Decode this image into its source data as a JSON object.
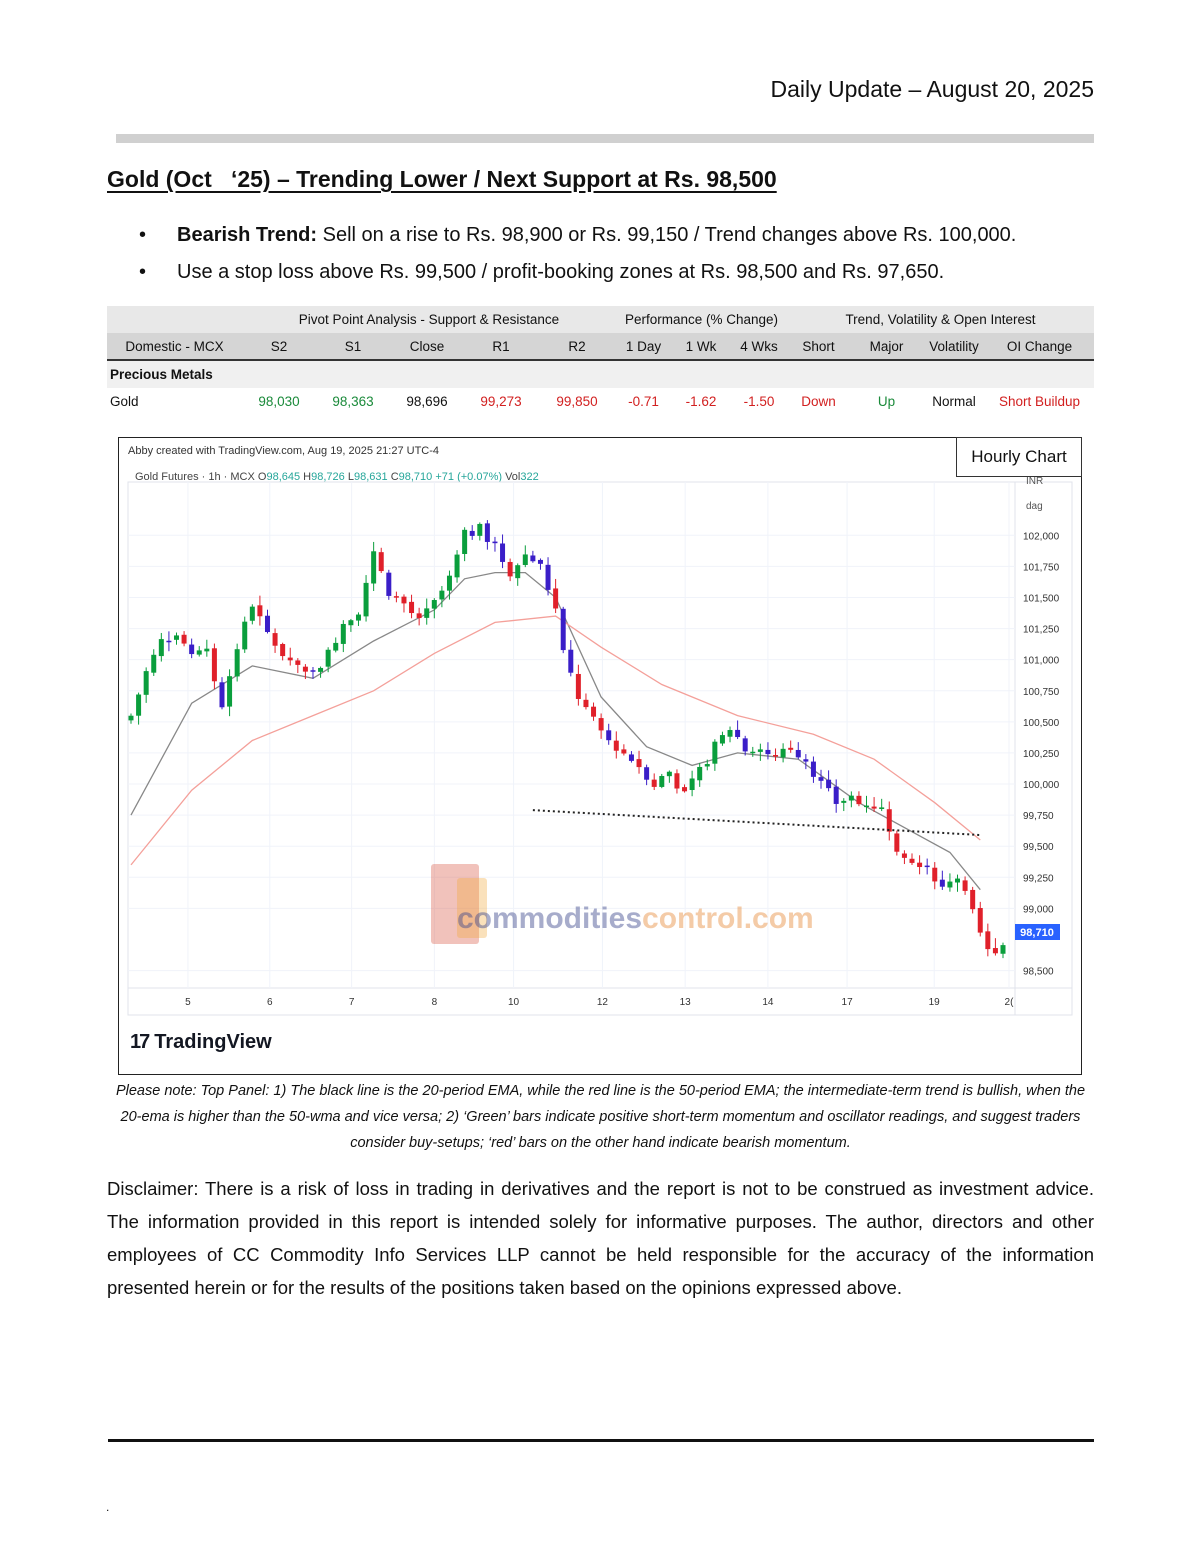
{
  "header": {
    "date": "Daily Update – August 20, 2025"
  },
  "title": "Gold (Oct   ‘25) – Trending Lower / Next Support at Rs. 98,500",
  "bullets": [
    {
      "bold": "Bearish Trend:",
      "text": " Sell on a rise to Rs. 98,900 or Rs. 99,150 / Trend changes above Rs. 100,000."
    },
    {
      "bold": "",
      "text": "Use a stop loss above Rs. 99,500 / profit-booking zones at Rs. 98,500 and Rs. 97,650."
    }
  ],
  "table": {
    "groups": {
      "pivot": "Pivot Point Analysis - Support & Resistance",
      "performance": "Performance (% Change)",
      "trend": "Trend, Volatility & Open Interest"
    },
    "columns": [
      "Domestic - MCX",
      "S2",
      "S1",
      "Close",
      "R1",
      "R2",
      "1 Day",
      "1 Wk",
      "4 Wks",
      "Short",
      "Major",
      "Volatility",
      "OI Change"
    ],
    "section": "Precious Metals",
    "row": {
      "name": "Gold",
      "s2": "98,030",
      "s1": "98,363",
      "close": "98,696",
      "r1": "99,273",
      "r2": "99,850",
      "day1": "-0.71",
      "wk1": "-1.62",
      "wk4": "-1.50",
      "short": "Down",
      "major": "Up",
      "volatility": "Normal",
      "oi_change": "Short Buildup"
    },
    "colors": {
      "green": "#1a8a3a",
      "red": "#d22020"
    }
  },
  "chart": {
    "badge": "Hourly Chart",
    "creator": "Abby created with TradingView.com, Aug 19, 2025 21:27 UTC-4",
    "legend": {
      "symbol": "Gold Futures · 1h · MCX",
      "o_label": "O",
      "o": "98,645",
      "h_label": "H",
      "h": "98,726",
      "l_label": "L",
      "l": "98,631",
      "c_label": "C",
      "c": "98,710",
      "chg": "+71 (+0.07%)",
      "vol_label": "Vol",
      "vol": "322"
    },
    "currency": "INR",
    "unit": "dag",
    "last_price": "98,710",
    "brand": "TradingView",
    "watermark": {
      "part1": "commodities",
      "part2": "control.com"
    }
  },
  "chart_data": {
    "type": "candlestick",
    "ylim": [
      98400,
      102300
    ],
    "yticks": [
      "102,000",
      "101,750",
      "101,500",
      "101,250",
      "101,000",
      "100,750",
      "100,500",
      "100,250",
      "100,000",
      "99,750",
      "99,500",
      "99,250",
      "99,000",
      "98,500"
    ],
    "ytick_values": [
      102000,
      101750,
      101500,
      101250,
      101000,
      100750,
      100500,
      100250,
      100000,
      99750,
      99500,
      99250,
      99000,
      98500
    ],
    "xticks": [
      "5",
      "6",
      "7",
      "8",
      "10",
      "12",
      "13",
      "14",
      "17",
      "19",
      "2("
    ],
    "close_path": [
      [
        0,
        100550
      ],
      [
        2,
        100900
      ],
      [
        4,
        101150
      ],
      [
        6,
        101200
      ],
      [
        8,
        101050
      ],
      [
        10,
        101050
      ],
      [
        12,
        100650
      ],
      [
        14,
        101100
      ],
      [
        16,
        101450
      ],
      [
        18,
        101200
      ],
      [
        20,
        101050
      ],
      [
        22,
        100950
      ],
      [
        24,
        100900
      ],
      [
        26,
        101050
      ],
      [
        28,
        101300
      ],
      [
        30,
        101400
      ],
      [
        32,
        101850
      ],
      [
        34,
        101550
      ],
      [
        36,
        101450
      ],
      [
        38,
        101300
      ],
      [
        40,
        101450
      ],
      [
        42,
        101650
      ],
      [
        44,
        102000
      ],
      [
        46,
        102050
      ],
      [
        48,
        101900
      ],
      [
        50,
        101700
      ],
      [
        52,
        101850
      ],
      [
        54,
        101750
      ],
      [
        56,
        101400
      ],
      [
        57,
        101050
      ],
      [
        59,
        100700
      ],
      [
        61,
        100500
      ],
      [
        63,
        100350
      ],
      [
        65,
        100250
      ],
      [
        67,
        100150
      ],
      [
        69,
        100000
      ],
      [
        71,
        100100
      ],
      [
        73,
        99900
      ],
      [
        75,
        100100
      ],
      [
        77,
        100300
      ],
      [
        79,
        100450
      ],
      [
        81,
        100300
      ],
      [
        83,
        100250
      ],
      [
        85,
        100200
      ],
      [
        87,
        100300
      ],
      [
        89,
        100200
      ],
      [
        91,
        100000
      ],
      [
        93,
        99850
      ],
      [
        95,
        99900
      ],
      [
        97,
        99850
      ],
      [
        99,
        99800
      ],
      [
        101,
        99500
      ],
      [
        103,
        99400
      ],
      [
        105,
        99350
      ],
      [
        107,
        99150
      ],
      [
        109,
        99250
      ],
      [
        111,
        98950
      ],
      [
        113,
        98650
      ],
      [
        115,
        98710
      ]
    ],
    "series": [
      {
        "name": "20-period EMA",
        "color": "#888888",
        "values": [
          [
            0,
            99750
          ],
          [
            8,
            100650
          ],
          [
            16,
            100950
          ],
          [
            24,
            100850
          ],
          [
            32,
            101150
          ],
          [
            40,
            101400
          ],
          [
            44,
            101650
          ],
          [
            48,
            101700
          ],
          [
            52,
            101700
          ],
          [
            56,
            101500
          ],
          [
            62,
            100700
          ],
          [
            68,
            100300
          ],
          [
            74,
            100150
          ],
          [
            80,
            100250
          ],
          [
            88,
            100200
          ],
          [
            96,
            99850
          ],
          [
            102,
            99650
          ],
          [
            108,
            99450
          ],
          [
            112,
            99150
          ]
        ]
      },
      {
        "name": "50-period EMA",
        "color": "#f4a09a",
        "values": [
          [
            0,
            99350
          ],
          [
            8,
            99950
          ],
          [
            16,
            100350
          ],
          [
            24,
            100550
          ],
          [
            32,
            100750
          ],
          [
            40,
            101050
          ],
          [
            48,
            101300
          ],
          [
            56,
            101350
          ],
          [
            62,
            101100
          ],
          [
            70,
            100800
          ],
          [
            80,
            100550
          ],
          [
            90,
            100400
          ],
          [
            98,
            100200
          ],
          [
            106,
            99850
          ],
          [
            112,
            99550
          ]
        ]
      }
    ],
    "annotations": [
      {
        "type": "dotted-support-line",
        "from": [
          53,
          99790
        ],
        "to": [
          112,
          99590
        ]
      }
    ]
  },
  "note": "Please note: Top Panel: 1) The black line is the 20-period EMA, while the red line is the 50-period EMA; the intermediate-term trend is bullish, when the 20-ema is higher than the 50-wma and vice versa; 2)  ‘Green’  bars indicate positive short-term momentum and oscillator readings, and suggest traders consider buy-setups;  ‘red’  bars on the other hand indicate bearish momentum.",
  "disclaimer": "Disclaimer: There is a risk of loss in trading in derivatives and the report is not to be construed as investment advice. The information provided in this report is intended solely for informative purposes. The author, directors and other employees of CC Commodity Info Services LLP cannot be held responsible for the accuracy of the information presented herein or for the results of the positions taken based on the opinions expressed above.",
  "footer": {
    "mark": "."
  }
}
